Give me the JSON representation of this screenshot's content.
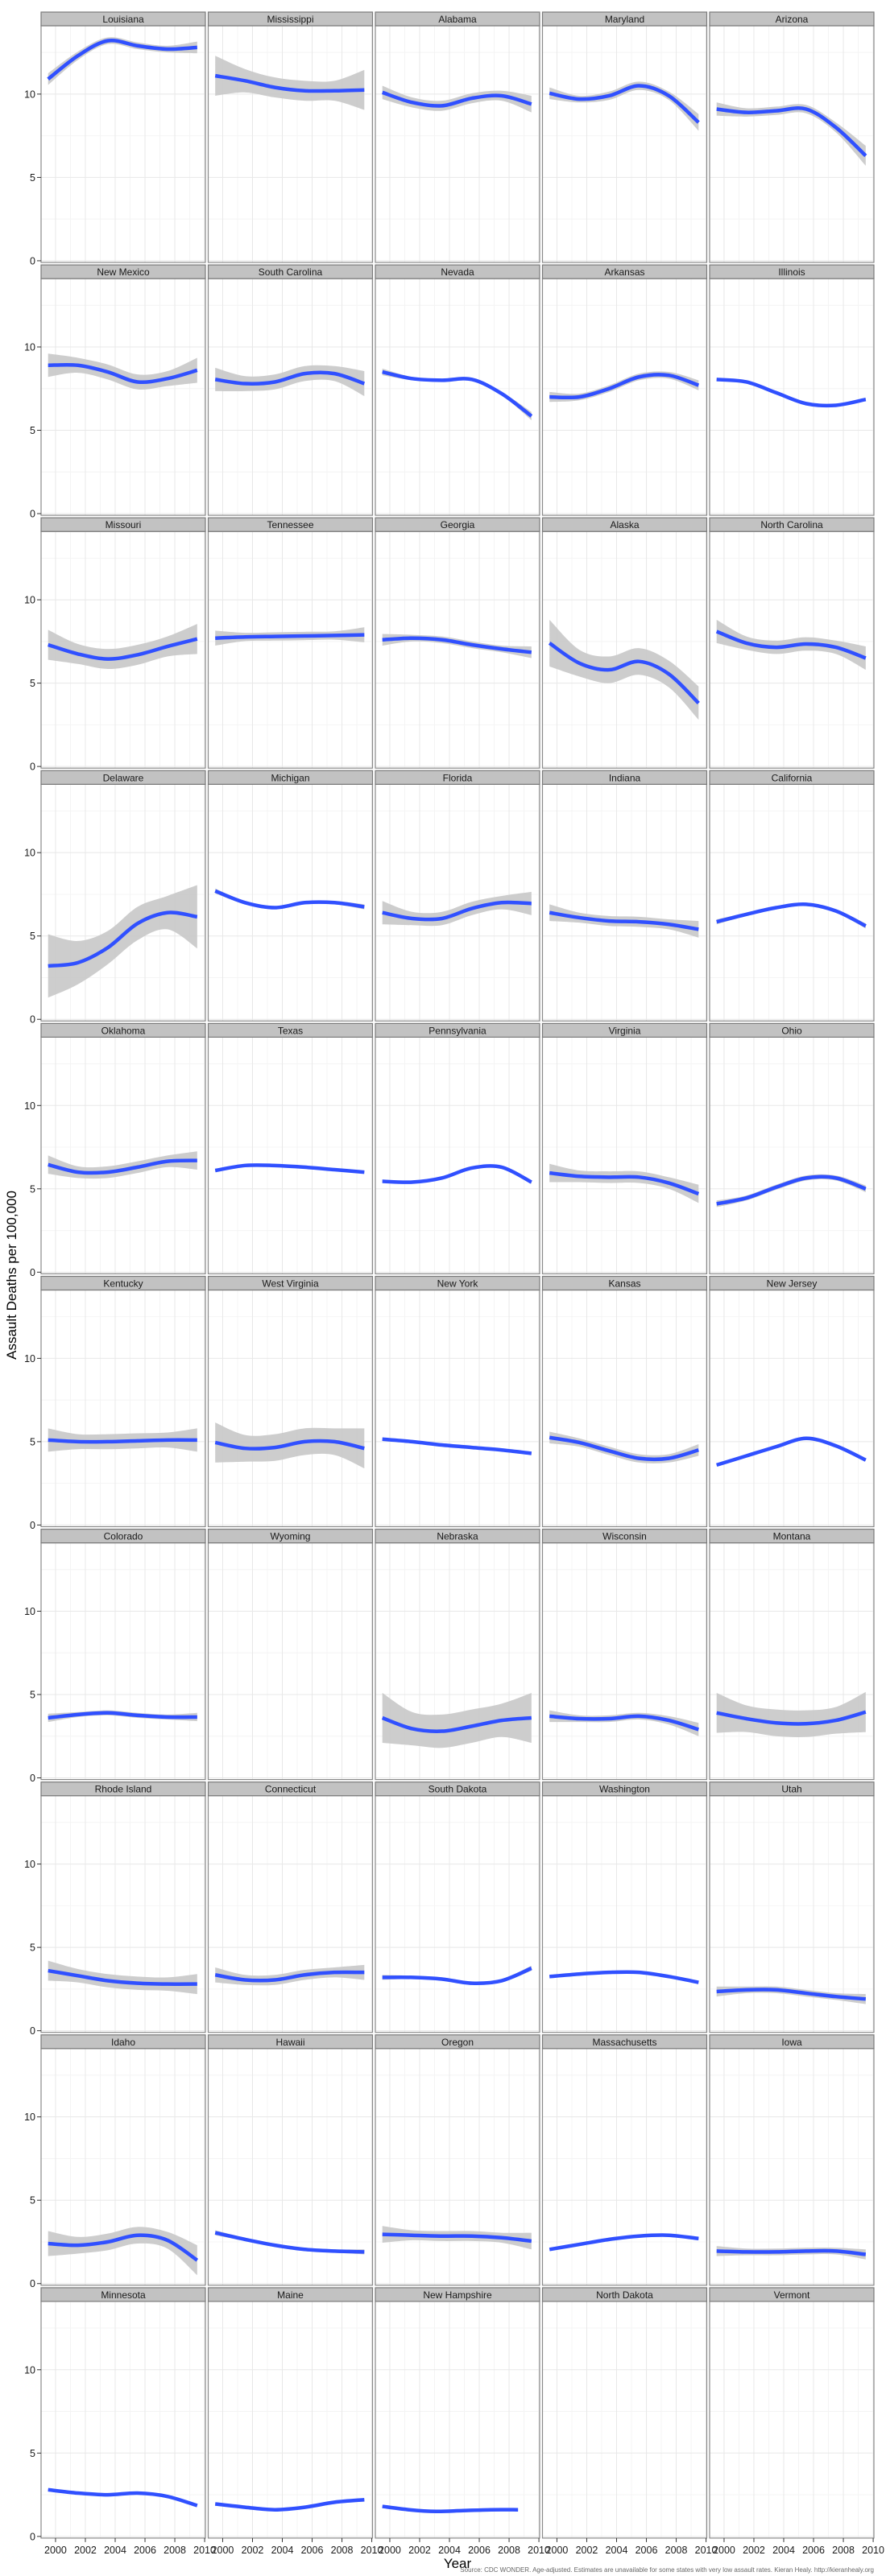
{
  "chart_data": {
    "type": "line",
    "title": "",
    "xlabel": "Year",
    "ylabel": "Assault Deaths per 100,000",
    "caption": "Source: CDC WONDER. Age-adjusted. Estimates are unavailable for some states with very low assault rates. Kieran Healy. http://kieranhealy.org",
    "xlim": [
      1999.03,
      2010.05
    ],
    "ylim": [
      -0.1,
      14.1
    ],
    "x_ticks": [
      "2000",
      "2002",
      "2004",
      "2006",
      "2008",
      "2010"
    ],
    "y_ticks": [
      "0",
      "5",
      "10"
    ],
    "grid": true,
    "layout": "facet grid, 10 rows x 5 columns",
    "series_style": {
      "line_color": "#3050ff",
      "band_color": "#c8c8c8"
    },
    "x_points": [
      1999.5,
      2001.5,
      2003.5,
      2005.5,
      2007.5,
      2009.5
    ],
    "panels": [
      {
        "state": "Louisiana",
        "y": [
          10.9,
          12.3,
          13.2,
          12.9,
          12.7,
          12.8
        ],
        "se": [
          0.35,
          0.25,
          0.2,
          0.2,
          0.2,
          0.35
        ]
      },
      {
        "state": "Mississippi",
        "y": [
          11.1,
          10.8,
          10.4,
          10.2,
          10.2,
          10.25
        ],
        "se": [
          1.2,
          0.7,
          0.6,
          0.6,
          0.6,
          1.2
        ]
      },
      {
        "state": "Alabama",
        "y": [
          10.1,
          9.5,
          9.3,
          9.75,
          9.9,
          9.4
        ],
        "se": [
          0.4,
          0.3,
          0.3,
          0.3,
          0.3,
          0.5
        ]
      },
      {
        "state": "Maryland",
        "y": [
          10.05,
          9.7,
          9.9,
          10.5,
          9.9,
          8.3
        ],
        "se": [
          0.35,
          0.2,
          0.25,
          0.25,
          0.25,
          0.5
        ]
      },
      {
        "state": "Arizona",
        "y": [
          9.1,
          8.9,
          9.0,
          9.1,
          8.0,
          6.3
        ],
        "se": [
          0.4,
          0.25,
          0.25,
          0.25,
          0.3,
          0.6
        ]
      },
      {
        "state": "New Mexico",
        "y": [
          8.9,
          8.9,
          8.5,
          7.9,
          8.1,
          8.6
        ],
        "se": [
          0.7,
          0.45,
          0.45,
          0.45,
          0.45,
          0.75
        ]
      },
      {
        "state": "South Carolina",
        "y": [
          8.05,
          7.8,
          7.9,
          8.4,
          8.4,
          7.8
        ],
        "se": [
          0.7,
          0.45,
          0.45,
          0.45,
          0.45,
          0.75
        ]
      },
      {
        "state": "Nevada",
        "y": [
          8.5,
          8.1,
          8.0,
          8.05,
          7.2,
          5.85
        ],
        "se": [
          0.2,
          0.1,
          0.1,
          0.1,
          0.1,
          0.25
        ]
      },
      {
        "state": "Arkansas",
        "y": [
          7.0,
          7.0,
          7.5,
          8.2,
          8.3,
          7.7
        ],
        "se": [
          0.3,
          0.2,
          0.2,
          0.2,
          0.2,
          0.3
        ]
      },
      {
        "state": "Illinois",
        "y": [
          8.05,
          7.9,
          7.25,
          6.6,
          6.5,
          6.85
        ],
        "se": [
          0.1,
          0.06,
          0.06,
          0.06,
          0.06,
          0.1
        ]
      },
      {
        "state": "Missouri",
        "y": [
          7.3,
          6.75,
          6.45,
          6.7,
          7.2,
          7.65
        ],
        "se": [
          0.9,
          0.6,
          0.6,
          0.6,
          0.6,
          0.9
        ]
      },
      {
        "state": "Tennessee",
        "y": [
          7.7,
          7.77,
          7.8,
          7.83,
          7.86,
          7.9
        ],
        "se": [
          0.45,
          0.25,
          0.25,
          0.25,
          0.25,
          0.45
        ]
      },
      {
        "state": "Georgia",
        "y": [
          7.6,
          7.7,
          7.6,
          7.3,
          7.05,
          6.85
        ],
        "se": [
          0.35,
          0.2,
          0.2,
          0.2,
          0.2,
          0.35
        ]
      },
      {
        "state": "Alaska",
        "y": [
          7.4,
          6.2,
          5.8,
          6.3,
          5.55,
          3.8
        ],
        "se": [
          1.4,
          0.8,
          0.8,
          0.8,
          0.8,
          1.0
        ]
      },
      {
        "state": "North Carolina",
        "y": [
          8.1,
          7.4,
          7.15,
          7.35,
          7.15,
          6.5
        ],
        "se": [
          0.7,
          0.4,
          0.4,
          0.4,
          0.4,
          0.7
        ]
      },
      {
        "state": "Delaware",
        "y": [
          3.2,
          3.4,
          4.3,
          5.75,
          6.4,
          6.15
        ],
        "se": [
          1.9,
          1.3,
          1.0,
          1.0,
          1.0,
          1.9
        ]
      },
      {
        "state": "Michigan",
        "y": [
          7.7,
          7.0,
          6.7,
          7.0,
          7.0,
          6.75
        ],
        "se": [
          0.15,
          0.1,
          0.1,
          0.1,
          0.1,
          0.15
        ]
      },
      {
        "state": "Florida",
        "y": [
          6.4,
          6.05,
          6.05,
          6.65,
          7.0,
          6.95
        ],
        "se": [
          0.7,
          0.4,
          0.4,
          0.4,
          0.4,
          0.7
        ]
      },
      {
        "state": "Indiana",
        "y": [
          6.4,
          6.1,
          5.9,
          5.85,
          5.7,
          5.4
        ],
        "se": [
          0.5,
          0.3,
          0.3,
          0.3,
          0.3,
          0.5
        ]
      },
      {
        "state": "California",
        "y": [
          5.85,
          6.3,
          6.7,
          6.9,
          6.5,
          5.6
        ],
        "se": [
          0.15,
          0.1,
          0.1,
          0.1,
          0.1,
          0.15
        ]
      },
      {
        "state": "Oklahoma",
        "y": [
          6.45,
          6.0,
          6.0,
          6.3,
          6.65,
          6.7
        ],
        "se": [
          0.55,
          0.35,
          0.35,
          0.35,
          0.35,
          0.55
        ]
      },
      {
        "state": "Texas",
        "y": [
          6.1,
          6.4,
          6.4,
          6.3,
          6.15,
          6.0
        ],
        "se": [
          0.05,
          0.04,
          0.04,
          0.04,
          0.04,
          0.05
        ]
      },
      {
        "state": "Pennsylvania",
        "y": [
          5.45,
          5.4,
          5.65,
          6.25,
          6.3,
          5.4
        ],
        "se": [
          0.1,
          0.08,
          0.08,
          0.08,
          0.08,
          0.1
        ]
      },
      {
        "state": "Virginia",
        "y": [
          5.95,
          5.75,
          5.7,
          5.7,
          5.35,
          4.7
        ],
        "se": [
          0.55,
          0.35,
          0.35,
          0.35,
          0.35,
          0.55
        ]
      },
      {
        "state": "Ohio",
        "y": [
          4.1,
          4.45,
          5.1,
          5.65,
          5.65,
          5.0
        ],
        "se": [
          0.2,
          0.15,
          0.15,
          0.15,
          0.15,
          0.2
        ]
      },
      {
        "state": "Kentucky",
        "y": [
          5.1,
          5.0,
          5.0,
          5.05,
          5.1,
          5.1
        ],
        "se": [
          0.7,
          0.45,
          0.45,
          0.45,
          0.45,
          0.7
        ]
      },
      {
        "state": "West Virginia",
        "y": [
          4.95,
          4.6,
          4.65,
          5.0,
          5.0,
          4.6
        ],
        "se": [
          1.2,
          0.8,
          0.8,
          0.8,
          0.8,
          1.2
        ]
      },
      {
        "state": "New York",
        "y": [
          5.15,
          5.0,
          4.8,
          4.65,
          4.5,
          4.3
        ],
        "se": [
          0.1,
          0.06,
          0.06,
          0.06,
          0.06,
          0.1
        ]
      },
      {
        "state": "Kansas",
        "y": [
          5.25,
          4.95,
          4.45,
          4.0,
          4.0,
          4.5
        ],
        "se": [
          0.35,
          0.25,
          0.25,
          0.25,
          0.25,
          0.35
        ]
      },
      {
        "state": "New Jersey",
        "y": [
          3.6,
          4.15,
          4.7,
          5.2,
          4.75,
          3.9
        ],
        "se": [
          0.05,
          0.04,
          0.04,
          0.04,
          0.04,
          0.05
        ]
      },
      {
        "state": "Colorado",
        "y": [
          3.6,
          3.8,
          3.9,
          3.75,
          3.65,
          3.65
        ],
        "se": [
          0.25,
          0.15,
          0.15,
          0.15,
          0.15,
          0.25
        ]
      },
      {
        "state": "Wyoming",
        "y": [],
        "se": []
      },
      {
        "state": "Nebraska",
        "y": [
          3.6,
          2.95,
          2.8,
          3.1,
          3.45,
          3.6
        ],
        "se": [
          1.5,
          1.0,
          1.0,
          1.0,
          1.0,
          1.5
        ]
      },
      {
        "state": "Wisconsin",
        "y": [
          3.7,
          3.55,
          3.55,
          3.7,
          3.45,
          2.9
        ],
        "se": [
          0.35,
          0.2,
          0.2,
          0.2,
          0.25,
          0.4
        ]
      },
      {
        "state": "Montana",
        "y": [
          3.9,
          3.55,
          3.3,
          3.25,
          3.45,
          3.95
        ],
        "se": [
          1.2,
          0.8,
          0.8,
          0.8,
          0.8,
          1.2
        ]
      },
      {
        "state": "Rhode Island",
        "y": [
          3.6,
          3.3,
          3.0,
          2.85,
          2.8,
          2.8
        ],
        "se": [
          0.6,
          0.4,
          0.4,
          0.4,
          0.4,
          0.6
        ]
      },
      {
        "state": "Connecticut",
        "y": [
          3.35,
          3.05,
          3.05,
          3.35,
          3.5,
          3.5
        ],
        "se": [
          0.45,
          0.3,
          0.3,
          0.3,
          0.3,
          0.45
        ]
      },
      {
        "state": "South Dakota",
        "y": [
          3.2,
          3.2,
          3.1,
          2.85,
          3.0,
          3.75
        ],
        "se": [
          0.15,
          0.1,
          0.1,
          0.1,
          0.1,
          0.15
        ]
      },
      {
        "state": "Washington",
        "y": [
          3.25,
          3.4,
          3.5,
          3.5,
          3.25,
          2.9
        ],
        "se": [
          0.05,
          0.04,
          0.04,
          0.04,
          0.04,
          0.05
        ]
      },
      {
        "state": "Utah",
        "y": [
          2.35,
          2.45,
          2.45,
          2.25,
          2.05,
          1.9
        ],
        "se": [
          0.3,
          0.2,
          0.2,
          0.2,
          0.2,
          0.3
        ]
      },
      {
        "state": "Idaho",
        "y": [
          2.4,
          2.3,
          2.5,
          2.9,
          2.6,
          1.4
        ],
        "se": [
          0.75,
          0.5,
          0.5,
          0.5,
          0.5,
          0.9
        ]
      },
      {
        "state": "Hawaii",
        "y": [
          3.05,
          2.65,
          2.3,
          2.05,
          1.95,
          1.9
        ],
        "se": [
          0.15,
          0.1,
          0.1,
          0.1,
          0.1,
          0.15
        ]
      },
      {
        "state": "Oregon",
        "y": [
          2.95,
          2.9,
          2.85,
          2.85,
          2.75,
          2.55
        ],
        "se": [
          0.5,
          0.3,
          0.3,
          0.3,
          0.3,
          0.5
        ]
      },
      {
        "state": "Massachusetts",
        "y": [
          2.05,
          2.35,
          2.65,
          2.85,
          2.9,
          2.7
        ],
        "se": [
          0.05,
          0.04,
          0.04,
          0.04,
          0.04,
          0.05
        ]
      },
      {
        "state": "Iowa",
        "y": [
          1.95,
          1.9,
          1.9,
          1.95,
          1.95,
          1.75
        ],
        "se": [
          0.3,
          0.2,
          0.2,
          0.2,
          0.2,
          0.3
        ]
      },
      {
        "state": "Minnesota",
        "y": [
          2.8,
          2.6,
          2.5,
          2.6,
          2.4,
          1.85
        ],
        "se": [
          0.05,
          0.04,
          0.04,
          0.04,
          0.04,
          0.05
        ]
      },
      {
        "state": "Maine",
        "y": [
          1.95,
          1.75,
          1.6,
          1.75,
          2.05,
          2.2
        ],
        "se": [
          0.05,
          0.04,
          0.04,
          0.04,
          0.04,
          0.05
        ]
      },
      {
        "state": "New Hampshire",
        "x": [
          1999.5,
          2001.3,
          2003.1,
          2004.9,
          2006.8,
          2008.6
        ],
        "y": [
          1.8,
          1.6,
          1.5,
          1.55,
          1.6,
          1.6
        ],
        "se": [
          0.05,
          0.04,
          0.04,
          0.04,
          0.04,
          0.05
        ]
      },
      {
        "state": "North Dakota",
        "y": [],
        "se": []
      },
      {
        "state": "Vermont",
        "y": [],
        "se": []
      }
    ]
  }
}
